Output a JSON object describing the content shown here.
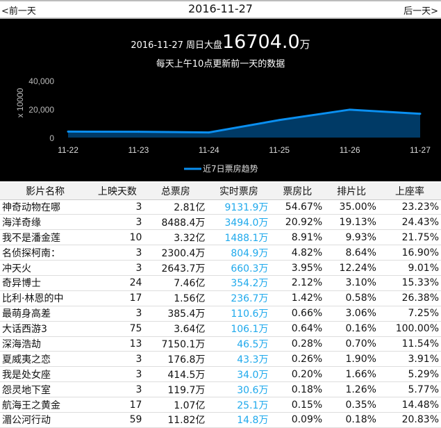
{
  "nav": {
    "prev": "<前一天",
    "date": "2016-11-27",
    "next": "后一天>"
  },
  "summary": {
    "prefix": "2016-11-27 周日大盘",
    "total": "16704.0",
    "unit": "万",
    "note": "每天上午10点更新前一天的数据"
  },
  "chart_data": {
    "type": "area",
    "x": [
      "11-22",
      "11-23",
      "11-24",
      "11-25",
      "11-26",
      "11-27"
    ],
    "series": [
      {
        "name": "近7日票房趋势",
        "values": [
          4200,
          4100,
          3600,
          12300,
          19600,
          16704
        ]
      }
    ],
    "ylabel": "x 10000",
    "yticks": [
      "0",
      "20,000",
      "40,000"
    ],
    "ylim": [
      0,
      40000
    ],
    "legend": "bottom",
    "line_color": "#0a8ff0",
    "fill_color": "#003a66"
  },
  "table": {
    "headers": [
      "影片名称",
      "上映天数",
      "总票房",
      "实时票房",
      "票房比",
      "排片比",
      "上座率"
    ],
    "rows": [
      [
        "神奇动物在哪",
        "3",
        "2.81亿",
        "9131.9万",
        "54.67%",
        "35.00%",
        "23.23%"
      ],
      [
        "海洋奇缘",
        "3",
        "8488.4万",
        "3494.0万",
        "20.92%",
        "19.13%",
        "24.43%"
      ],
      [
        "我不是潘金莲",
        "10",
        "3.32亿",
        "1488.1万",
        "8.91%",
        "9.93%",
        "21.75%"
      ],
      [
        "名侦探柯南：",
        "3",
        "2300.4万",
        "804.9万",
        "4.82%",
        "8.64%",
        "16.90%"
      ],
      [
        "冲天火",
        "3",
        "2643.7万",
        "660.3万",
        "3.95%",
        "12.24%",
        "9.01%"
      ],
      [
        "奇异博士",
        "24",
        "7.46亿",
        "354.2万",
        "2.12%",
        "3.10%",
        "15.33%"
      ],
      [
        "比利·林恩的中",
        "17",
        "1.56亿",
        "236.7万",
        "1.42%",
        "0.58%",
        "26.38%"
      ],
      [
        "最萌身高差",
        "3",
        "385.4万",
        "110.6万",
        "0.66%",
        "3.06%",
        "7.25%"
      ],
      [
        "大话西游3",
        "75",
        "3.64亿",
        "106.1万",
        "0.64%",
        "0.16%",
        "100.00%"
      ],
      [
        "深海浩劫",
        "13",
        "7150.1万",
        "46.5万",
        "0.28%",
        "0.70%",
        "11.54%"
      ],
      [
        "夏威夷之恋",
        "3",
        "176.8万",
        "43.3万",
        "0.26%",
        "1.90%",
        "3.91%"
      ],
      [
        "我是处女座",
        "3",
        "414.5万",
        "34.0万",
        "0.20%",
        "1.66%",
        "5.29%"
      ],
      [
        "怨灵地下室",
        "3",
        "119.7万",
        "30.6万",
        "0.18%",
        "1.26%",
        "5.77%"
      ],
      [
        "航海王之黄金",
        "17",
        "1.07亿",
        "25.1万",
        "0.15%",
        "0.35%",
        "14.48%"
      ],
      [
        "湄公河行动",
        "59",
        "11.82亿",
        "14.8万",
        "0.09%",
        "0.18%",
        "20.83%"
      ]
    ]
  }
}
